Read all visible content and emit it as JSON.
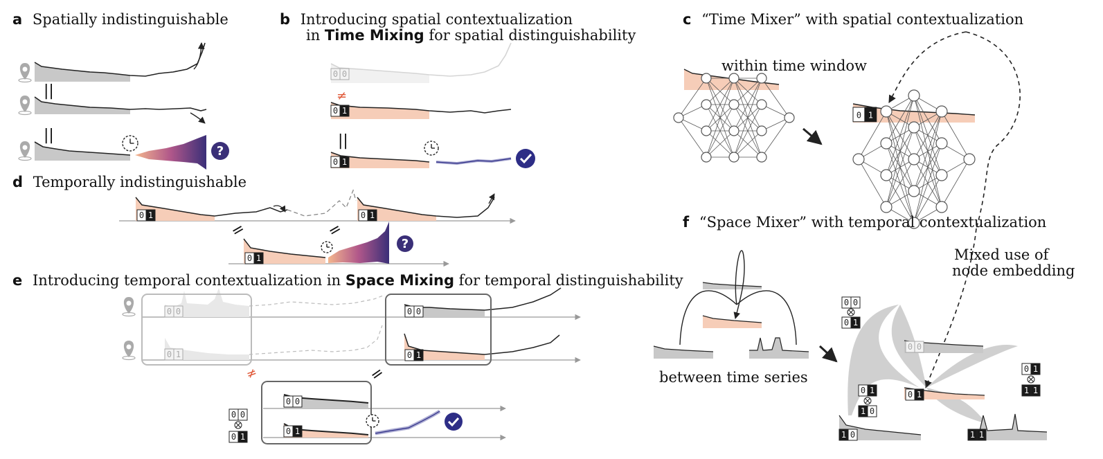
{
  "panels": {
    "a": {
      "letter": "a",
      "title": "Spatially indistinguishable"
    },
    "b": {
      "letter": "b",
      "title_line1": "Introducing spatial contextualization",
      "title_line2_pre": "in ",
      "title_line2_bold": "Time Mixing",
      "title_line2_post": " for spatial distinguishability"
    },
    "c": {
      "letter": "c",
      "title": "“Time Mixer” with spatial contextualization",
      "label_within": "within time window"
    },
    "d": {
      "letter": "d",
      "title": "Temporally indistinguishable"
    },
    "e": {
      "letter": "e",
      "title_pre": "Introducing temporal contextualization in ",
      "title_bold": "Space Mixing",
      "title_post": " for temporal distinguishability"
    },
    "f": {
      "letter": "f",
      "title": "“Space Mixer” with temporal contextualization",
      "label_between": "between time series",
      "label_mixed_1": "Mixed use of",
      "label_mixed_2": "node embedding"
    }
  },
  "symbols": {
    "equal": "=",
    "parallel": "||",
    "not_equal": "≠",
    "question": "?",
    "otimes": "⊗"
  },
  "embeddings": {
    "e00": [
      "0",
      "0"
    ],
    "e01": [
      "0",
      "1"
    ],
    "e10": [
      "1",
      "0"
    ],
    "e11": [
      "1",
      "1"
    ]
  },
  "colors": {
    "peach": "#f6cdb8",
    "gray_fill": "#c8c8c8",
    "light_gray": "#e8e8e8",
    "dark_cell": "#1a1a1a",
    "navy": "#2d2d86",
    "red": "#e05a3a",
    "purple": "#5b5ba8",
    "node_line": "#555555"
  },
  "icons": [
    "map-pin-icon",
    "clock-icon",
    "question-badge-icon",
    "check-badge-icon",
    "arrow-icon",
    "neural-network-icon"
  ]
}
